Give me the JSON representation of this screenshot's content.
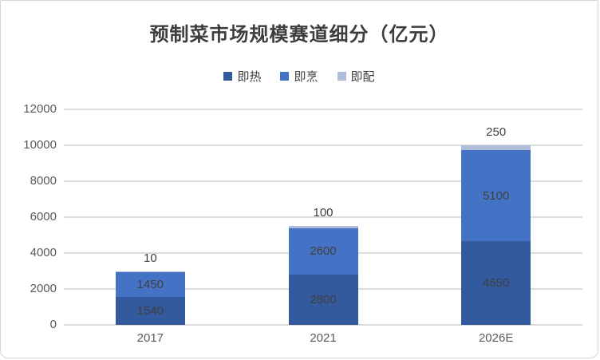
{
  "chart_data": {
    "type": "bar",
    "subtype": "stacked-column",
    "title": "预制菜市场规模赛道细分（亿元）",
    "categories": [
      "2017",
      "2021",
      "2026E"
    ],
    "series": [
      {
        "name": "即热",
        "color": "#33599E",
        "values": [
          1540,
          2800,
          4650
        ],
        "label_position": "inside"
      },
      {
        "name": "即烹",
        "color": "#4472C4",
        "values": [
          1450,
          2600,
          5100
        ],
        "label_position": "inside"
      },
      {
        "name": "即配",
        "color": "#AFBCDA",
        "values": [
          10,
          100,
          250
        ],
        "label_position": "outside-top"
      }
    ],
    "totals": [
      3000,
      5500,
      10000
    ],
    "xlabel": "",
    "ylabel": "",
    "ylim": [
      0,
      12000
    ],
    "yticks": [
      0,
      2000,
      4000,
      6000,
      8000,
      10000,
      12000
    ],
    "grid": true,
    "legend_position": "top",
    "legend_labels": [
      "即热",
      "即烹",
      "即配"
    ]
  },
  "styles": {
    "background": "#FFFFFF",
    "card_border": "#D5D5D5",
    "gridline": "#DCDCDC",
    "title_color": "#3D3D3D",
    "value_label_color": "#404040",
    "axis_label_color": "#595959"
  }
}
